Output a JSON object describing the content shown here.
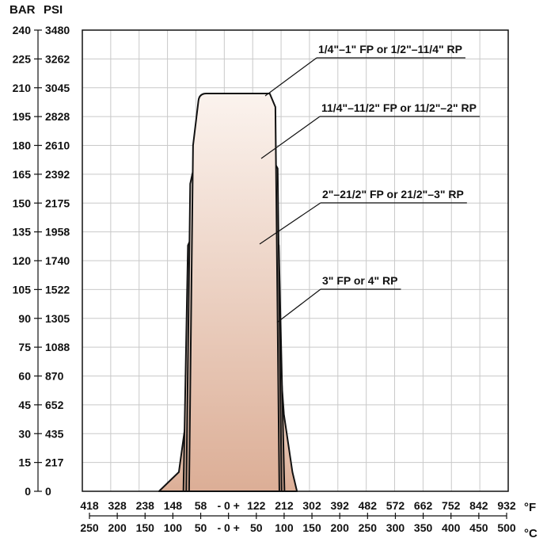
{
  "chart_data": {
    "type": "area",
    "y_axis_left": {
      "label": "BAR",
      "ticks": [
        "240",
        "225",
        "210",
        "195",
        "180",
        "165",
        "150",
        "135",
        "120",
        "105",
        "90",
        "75",
        "60",
        "45",
        "30",
        "15",
        "0"
      ]
    },
    "y_axis_right": {
      "label": "PSI",
      "ticks": [
        "3480",
        "3262",
        "3045",
        "2828",
        "2610",
        "2392",
        "2175",
        "1958",
        "1740",
        "1522",
        "1305",
        "1088",
        "870",
        "652",
        "435",
        "217",
        "0"
      ]
    },
    "ylim": [
      0,
      240
    ],
    "x_axis_top": {
      "unit": "°F",
      "ticks": [
        "418",
        "328",
        "238",
        "148",
        "58",
        "- 0 +",
        "122",
        "212",
        "302",
        "392",
        "482",
        "572",
        "662",
        "752",
        "842",
        "932"
      ]
    },
    "x_axis_bottom": {
      "unit": "°C",
      "ticks": [
        "250",
        "200",
        "150",
        "100",
        "50",
        "- 0 +",
        "50",
        "100",
        "150",
        "200",
        "250",
        "300",
        "350",
        "400",
        "450",
        "500"
      ]
    },
    "xlim_c": [
      -250,
      500
    ],
    "grid": true,
    "series": [
      {
        "name": "1/4\"–1\" FP or 1/2\"–11/4\" RP",
        "annotation": "1/4\"–1\" FP or 1/2\"–11/4\" RP",
        "x_c": [
          -62,
          -55,
          -44,
          80,
          90,
          97
        ],
        "y_bar": [
          0,
          180,
          207,
          207,
          200,
          0
        ]
      },
      {
        "name": "11/4\"–11/2\" FP or 11/2\"–2\" RP",
        "annotation": "11/4\"–11/2\" FP or 11/2\"–2\" RP",
        "x_c": [
          -67,
          -60,
          -49,
          81,
          94,
          101
        ],
        "y_bar": [
          0,
          160,
          175,
          175,
          168,
          0
        ]
      },
      {
        "name": "2\"–21/2\" FP or 21/2\"–3\" RP",
        "annotation": "2\"–21/2\" FP or 21/2\"–3\" RP",
        "x_c": [
          -72,
          -64,
          -52,
          83,
          96,
          106
        ],
        "y_bar": [
          0,
          128,
          136,
          136,
          128,
          0
        ]
      },
      {
        "name": "3\" FP or 4\" RP",
        "annotation": "3\" FP or 4\" RP",
        "x_c": [
          -115,
          -80,
          -66,
          -55,
          81,
          95,
          105,
          120,
          128
        ],
        "y_bar": [
          0,
          10,
          40,
          89,
          89,
          82,
          40,
          10,
          0
        ]
      }
    ]
  }
}
